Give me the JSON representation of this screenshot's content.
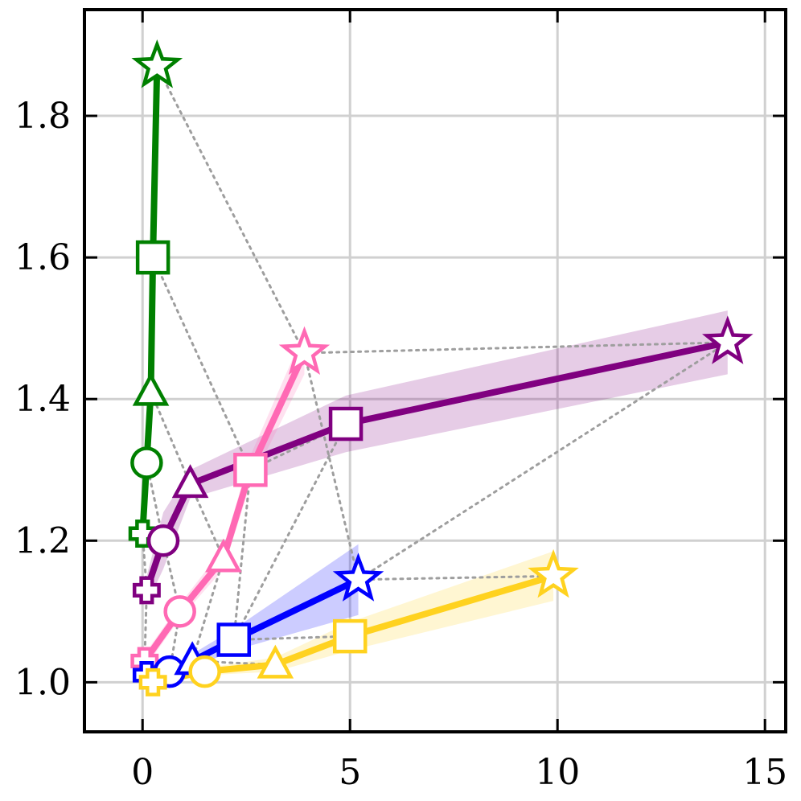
{
  "chart_data": {
    "type": "line",
    "title": "",
    "xlabel": "",
    "ylabel": "",
    "xlim": [
      -1.4,
      15.5
    ],
    "ylim": [
      0.93,
      1.95
    ],
    "xticks": [
      0,
      5,
      10,
      15
    ],
    "xtick_labels": [
      "0",
      "5",
      "10",
      "15"
    ],
    "yticks": [
      1.0,
      1.2,
      1.4,
      1.6,
      1.8
    ],
    "ytick_labels": [
      "1.0",
      "1.2",
      "1.4",
      "1.6",
      "1.8"
    ],
    "grid": true,
    "marker_order": [
      "cross",
      "circle",
      "triangle",
      "square",
      "star"
    ],
    "series": [
      {
        "color": "#008000",
        "points": [
          [
            0.0,
            1.21
          ],
          [
            0.1,
            1.31
          ],
          [
            0.2,
            1.41
          ],
          [
            0.25,
            1.6
          ],
          [
            0.35,
            1.87
          ]
        ],
        "band": [
          0.0,
          0.01,
          0.01,
          0.01,
          0.02
        ]
      },
      {
        "color": "#800080",
        "points": [
          [
            0.1,
            1.13
          ],
          [
            0.5,
            1.2
          ],
          [
            1.15,
            1.28
          ],
          [
            4.9,
            1.365
          ],
          [
            14.1,
            1.48
          ]
        ],
        "band": [
          0.02,
          0.04,
          0.02,
          0.04,
          0.045
        ]
      },
      {
        "color": "#ff69b4",
        "points": [
          [
            0.05,
            1.03
          ],
          [
            0.9,
            1.1
          ],
          [
            1.95,
            1.175
          ],
          [
            2.6,
            1.3
          ],
          [
            3.9,
            1.465
          ]
        ],
        "band": [
          0.01,
          0.01,
          0.015,
          0.02,
          0.03
        ]
      },
      {
        "color": "#0000ff",
        "points": [
          [
            0.1,
            1.01
          ],
          [
            0.65,
            1.015
          ],
          [
            1.2,
            1.03
          ],
          [
            2.2,
            1.06
          ],
          [
            5.2,
            1.145
          ]
        ],
        "band": [
          0.005,
          0.005,
          0.01,
          0.015,
          0.05
        ]
      },
      {
        "color": "#ffd21f",
        "points": [
          [
            0.25,
            1.0
          ],
          [
            1.5,
            1.015
          ],
          [
            3.2,
            1.025
          ],
          [
            5.0,
            1.065
          ],
          [
            9.9,
            1.15
          ]
        ],
        "band": [
          0.005,
          0.005,
          0.01,
          0.02,
          0.035
        ]
      }
    ],
    "dotted_links": [
      [
        [
          0.35,
          1.87
        ],
        [
          3.9,
          1.465
        ],
        [
          14.1,
          1.48
        ]
      ],
      [
        [
          3.9,
          1.465
        ],
        [
          5.2,
          1.145
        ],
        [
          9.9,
          1.15
        ]
      ],
      [
        [
          14.1,
          1.48
        ],
        [
          5.2,
          1.145
        ]
      ],
      [
        [
          0.25,
          1.6
        ],
        [
          2.6,
          1.3
        ],
        [
          4.9,
          1.365
        ]
      ],
      [
        [
          2.6,
          1.3
        ],
        [
          2.2,
          1.06
        ],
        [
          5.0,
          1.065
        ]
      ],
      [
        [
          4.9,
          1.365
        ],
        [
          2.2,
          1.06
        ]
      ],
      [
        [
          0.2,
          1.41
        ],
        [
          1.15,
          1.28
        ],
        [
          1.95,
          1.175
        ]
      ],
      [
        [
          1.95,
          1.175
        ],
        [
          1.2,
          1.03
        ],
        [
          3.2,
          1.025
        ]
      ],
      [
        [
          0.1,
          1.31
        ],
        [
          0.5,
          1.2
        ],
        [
          0.9,
          1.1
        ]
      ],
      [
        [
          0.9,
          1.1
        ],
        [
          0.65,
          1.015
        ],
        [
          1.5,
          1.015
        ]
      ],
      [
        [
          0.0,
          1.21
        ],
        [
          0.1,
          1.13
        ],
        [
          0.05,
          1.03
        ]
      ],
      [
        [
          0.05,
          1.03
        ],
        [
          0.1,
          1.01
        ],
        [
          0.25,
          1.0
        ]
      ]
    ]
  }
}
